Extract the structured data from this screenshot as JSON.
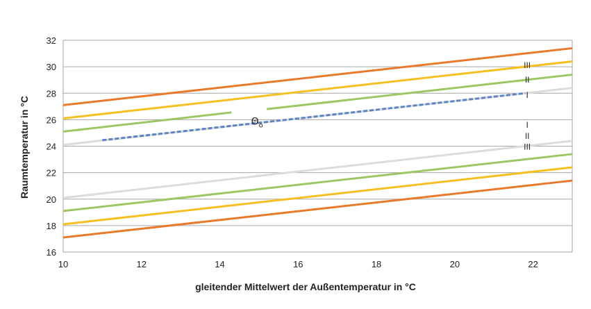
{
  "chart_data": {
    "type": "line",
    "title": "",
    "xlabel": "gleitender Mittelwert der Außentemperatur in °C",
    "ylabel": "Raumtemperatur in °C",
    "xlim": [
      10,
      23
    ],
    "ylim": [
      16,
      32
    ],
    "xticks": [
      "10",
      "12",
      "14",
      "16",
      "18",
      "20",
      "22"
    ],
    "yticks": [
      "16",
      "18",
      "20",
      "22",
      "24",
      "26",
      "28",
      "30",
      "32"
    ],
    "grid": "horizontal",
    "legend": "none",
    "series": [
      {
        "color": "#e97a2c",
        "x": [
          10,
          23
        ],
        "values": [
          27.1,
          31.4
        ]
      },
      {
        "color": "#f5c020",
        "x": [
          10,
          23
        ],
        "values": [
          26.1,
          30.4
        ]
      },
      {
        "color": "#9cc763",
        "x": [
          10,
          14.3
        ],
        "values": [
          25.1,
          26.55
        ],
        "x2": [
          15.2,
          23
        ],
        "values2": [
          26.8,
          29.4
        ]
      },
      {
        "color": "#dcdcdc",
        "x": [
          10,
          23
        ],
        "values": [
          24.1,
          28.4
        ]
      },
      {
        "color": "#5b84c4",
        "dashed": true,
        "x": [
          11,
          21.8
        ],
        "values": [
          24.45,
          28.0
        ]
      },
      {
        "color": "#dcdcdc",
        "x": [
          10,
          23
        ],
        "values": [
          20.1,
          24.4
        ]
      },
      {
        "color": "#9cc763",
        "x": [
          10,
          23
        ],
        "values": [
          19.1,
          23.4
        ]
      },
      {
        "color": "#f5c020",
        "x": [
          10,
          23
        ],
        "values": [
          18.1,
          22.4
        ]
      },
      {
        "color": "#e97a2c",
        "x": [
          10,
          23
        ],
        "values": [
          17.1,
          21.4
        ]
      }
    ],
    "annotations": [
      {
        "text": "III",
        "x": 21.85,
        "y": 30.1
      },
      {
        "text": "II",
        "x": 21.85,
        "y": 29.0
      },
      {
        "text": "I",
        "x": 21.85,
        "y": 27.85
      },
      {
        "text": "I",
        "x": 21.85,
        "y": 25.6
      },
      {
        "text": "II",
        "x": 21.85,
        "y": 24.75
      },
      {
        "text": "III",
        "x": 21.85,
        "y": 23.95
      }
    ],
    "theta_label": "Θ",
    "theta_sub": "o",
    "theta_pos": {
      "x": 14.8,
      "y": 25.9
    }
  }
}
